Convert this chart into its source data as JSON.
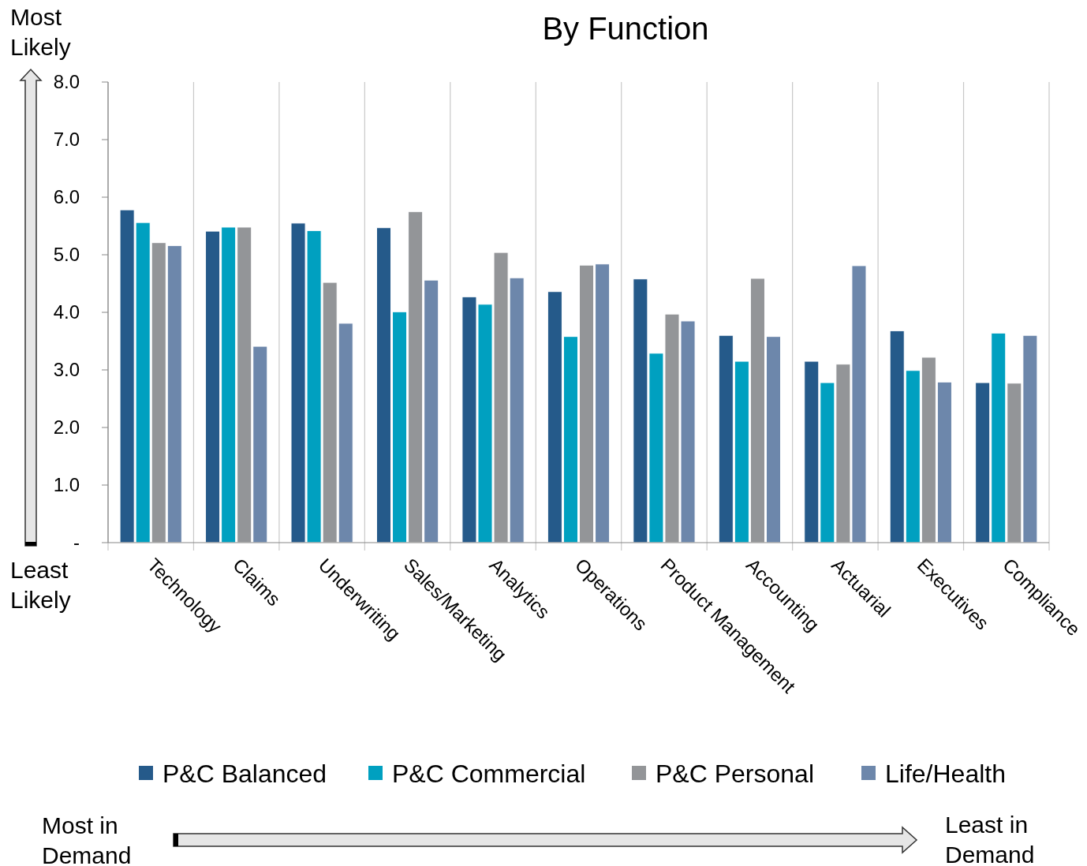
{
  "chart_data": {
    "type": "bar",
    "title": "By Function",
    "categories": [
      "Technology",
      "Claims",
      "Underwriting",
      "Sales/Marketing",
      "Analytics",
      "Operations",
      "Product Management",
      "Accounting",
      "Actuarial",
      "Executives",
      "Compliance"
    ],
    "series": [
      {
        "name": "P&C Balanced",
        "color": "#255a8a",
        "values": [
          5.78,
          5.41,
          5.55,
          5.47,
          4.27,
          4.36,
          4.58,
          3.6,
          3.15,
          3.68,
          2.78
        ]
      },
      {
        "name": "P&C Commercial",
        "color": "#00a0c0",
        "values": [
          5.56,
          5.48,
          5.42,
          4.01,
          4.14,
          3.58,
          3.29,
          3.15,
          2.78,
          2.99,
          3.64
        ]
      },
      {
        "name": "P&C Personal",
        "color": "#939598",
        "values": [
          5.21,
          5.48,
          4.52,
          5.75,
          5.04,
          4.82,
          3.97,
          4.59,
          3.1,
          3.22,
          2.77
        ]
      },
      {
        "name": "Life/Health",
        "color": "#6d87ab",
        "values": [
          5.16,
          3.41,
          3.81,
          4.56,
          4.6,
          4.84,
          3.85,
          3.58,
          4.81,
          2.79,
          3.6
        ]
      }
    ],
    "ylim": [
      0,
      8
    ],
    "yticks": [
      {
        "value": 0,
        "label": "-"
      },
      {
        "value": 1,
        "label": "1.0"
      },
      {
        "value": 2,
        "label": "2.0"
      },
      {
        "value": 3,
        "label": "3.0"
      },
      {
        "value": 4,
        "label": "4.0"
      },
      {
        "value": 5,
        "label": "5.0"
      },
      {
        "value": 6,
        "label": "6.0"
      },
      {
        "value": 7,
        "label": "7.0"
      },
      {
        "value": 8,
        "label": "8.0"
      }
    ],
    "grid": "x",
    "legend": "bottom",
    "annotations": [
      "Most Likely",
      "Least Likely",
      "Most in Demand",
      "Least in Demand"
    ]
  }
}
